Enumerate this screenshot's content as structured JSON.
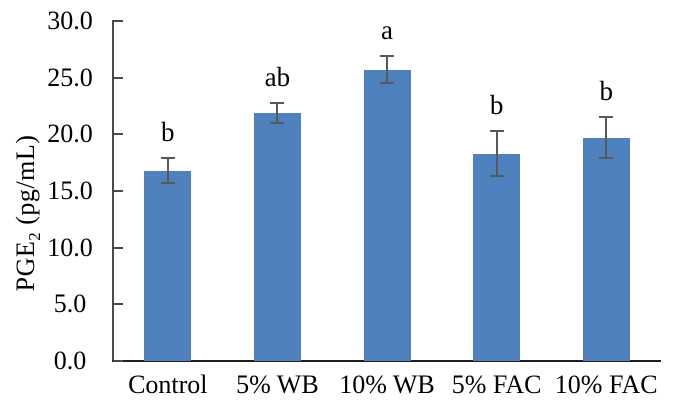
{
  "chart_data": {
    "type": "bar",
    "title": "",
    "xlabel": "",
    "ylabel": "PGE2 (pg/mL)",
    "ylabel_main": "PGE",
    "ylabel_sub": "2",
    "ylabel_units": " (pg/mL)",
    "categories": [
      "Control",
      "5% WB",
      "10% WB",
      "5% FAC",
      "10% FAC"
    ],
    "values": [
      16.8,
      21.9,
      25.7,
      18.3,
      19.7
    ],
    "error_bars": [
      1.1,
      0.9,
      1.2,
      2.0,
      1.8
    ],
    "sig_letters": [
      "b",
      "ab",
      "a",
      "b",
      "b"
    ],
    "ylim": [
      0,
      30
    ],
    "ytick_interval": 5,
    "ytick_labels": [
      "0.0",
      "5.0",
      "10.0",
      "15.0",
      "20.0",
      "25.0",
      "30.0"
    ],
    "grid": false,
    "legend_position": "none",
    "bar_color": "#4E81BD",
    "error_color": "#595959",
    "axis_color": "#4A4A4A",
    "baseline_color": "#1F1F1F",
    "text_color": "#000000"
  }
}
